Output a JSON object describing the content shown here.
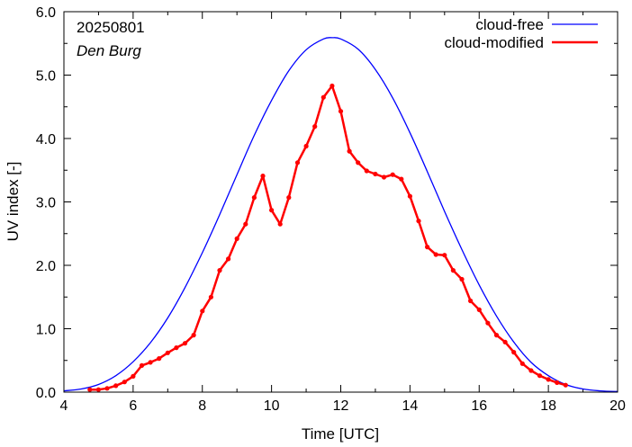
{
  "chart_data": {
    "type": "line",
    "title": "",
    "annotations": {
      "date": "20250801",
      "location": "Den Burg"
    },
    "xlabel": "Time  [UTC]",
    "ylabel": "UV index  [-]",
    "xlim": [
      4,
      20
    ],
    "ylim": [
      0,
      6
    ],
    "x_ticks": [
      4,
      6,
      8,
      10,
      12,
      14,
      16,
      18,
      20
    ],
    "x_tick_labels": [
      "4",
      "6",
      "8",
      "10",
      "12",
      "14",
      "16",
      "18",
      "20"
    ],
    "y_ticks": [
      0,
      1,
      2,
      3,
      4,
      5,
      6
    ],
    "y_tick_labels": [
      "0.0",
      "1.0",
      "2.0",
      "3.0",
      "4.0",
      "5.0",
      "6.0"
    ],
    "grid": false,
    "legend_position": "top-right",
    "series": [
      {
        "name": "cloud-free",
        "color": "#0000ff",
        "markers": false,
        "x": [
          4.0,
          4.5,
          5.0,
          5.5,
          6.0,
          6.5,
          7.0,
          7.5,
          8.0,
          8.5,
          9.0,
          9.5,
          10.0,
          10.5,
          11.0,
          11.5,
          11.75,
          12.0,
          12.5,
          13.0,
          13.5,
          14.0,
          14.5,
          15.0,
          15.5,
          16.0,
          16.5,
          17.0,
          17.5,
          18.0,
          18.5,
          19.0,
          19.5,
          20.0
        ],
        "y": [
          0.02,
          0.05,
          0.12,
          0.26,
          0.48,
          0.78,
          1.17,
          1.65,
          2.2,
          2.8,
          3.43,
          4.05,
          4.6,
          5.07,
          5.4,
          5.57,
          5.59,
          5.57,
          5.41,
          5.09,
          4.64,
          4.09,
          3.48,
          2.85,
          2.25,
          1.69,
          1.2,
          0.79,
          0.47,
          0.26,
          0.12,
          0.05,
          0.02,
          0.01
        ]
      },
      {
        "name": "cloud-modified",
        "color": "#ff0000",
        "markers": true,
        "x": [
          4.75,
          5.0,
          5.25,
          5.5,
          5.75,
          6.0,
          6.25,
          6.5,
          6.75,
          7.0,
          7.25,
          7.5,
          7.75,
          8.0,
          8.25,
          8.5,
          8.75,
          9.0,
          9.25,
          9.5,
          9.75,
          10.0,
          10.25,
          10.5,
          10.75,
          11.0,
          11.25,
          11.5,
          11.75,
          12.0,
          12.25,
          12.5,
          12.75,
          13.0,
          13.25,
          13.5,
          13.75,
          14.0,
          14.25,
          14.5,
          14.75,
          15.0,
          15.25,
          15.5,
          15.75,
          16.0,
          16.25,
          16.5,
          16.75,
          17.0,
          17.25,
          17.5,
          17.75,
          18.0,
          18.25,
          18.5
        ],
        "y": [
          0.04,
          0.04,
          0.06,
          0.1,
          0.16,
          0.25,
          0.42,
          0.47,
          0.53,
          0.62,
          0.7,
          0.77,
          0.9,
          1.28,
          1.5,
          1.92,
          2.1,
          2.42,
          2.65,
          3.07,
          3.41,
          2.87,
          2.65,
          3.07,
          3.62,
          3.88,
          4.19,
          4.65,
          4.83,
          4.43,
          3.8,
          3.62,
          3.49,
          3.44,
          3.39,
          3.43,
          3.36,
          3.09,
          2.7,
          2.29,
          2.17,
          2.16,
          1.92,
          1.78,
          1.44,
          1.3,
          1.09,
          0.9,
          0.79,
          0.63,
          0.45,
          0.34,
          0.26,
          0.2,
          0.15,
          0.11
        ]
      }
    ]
  }
}
